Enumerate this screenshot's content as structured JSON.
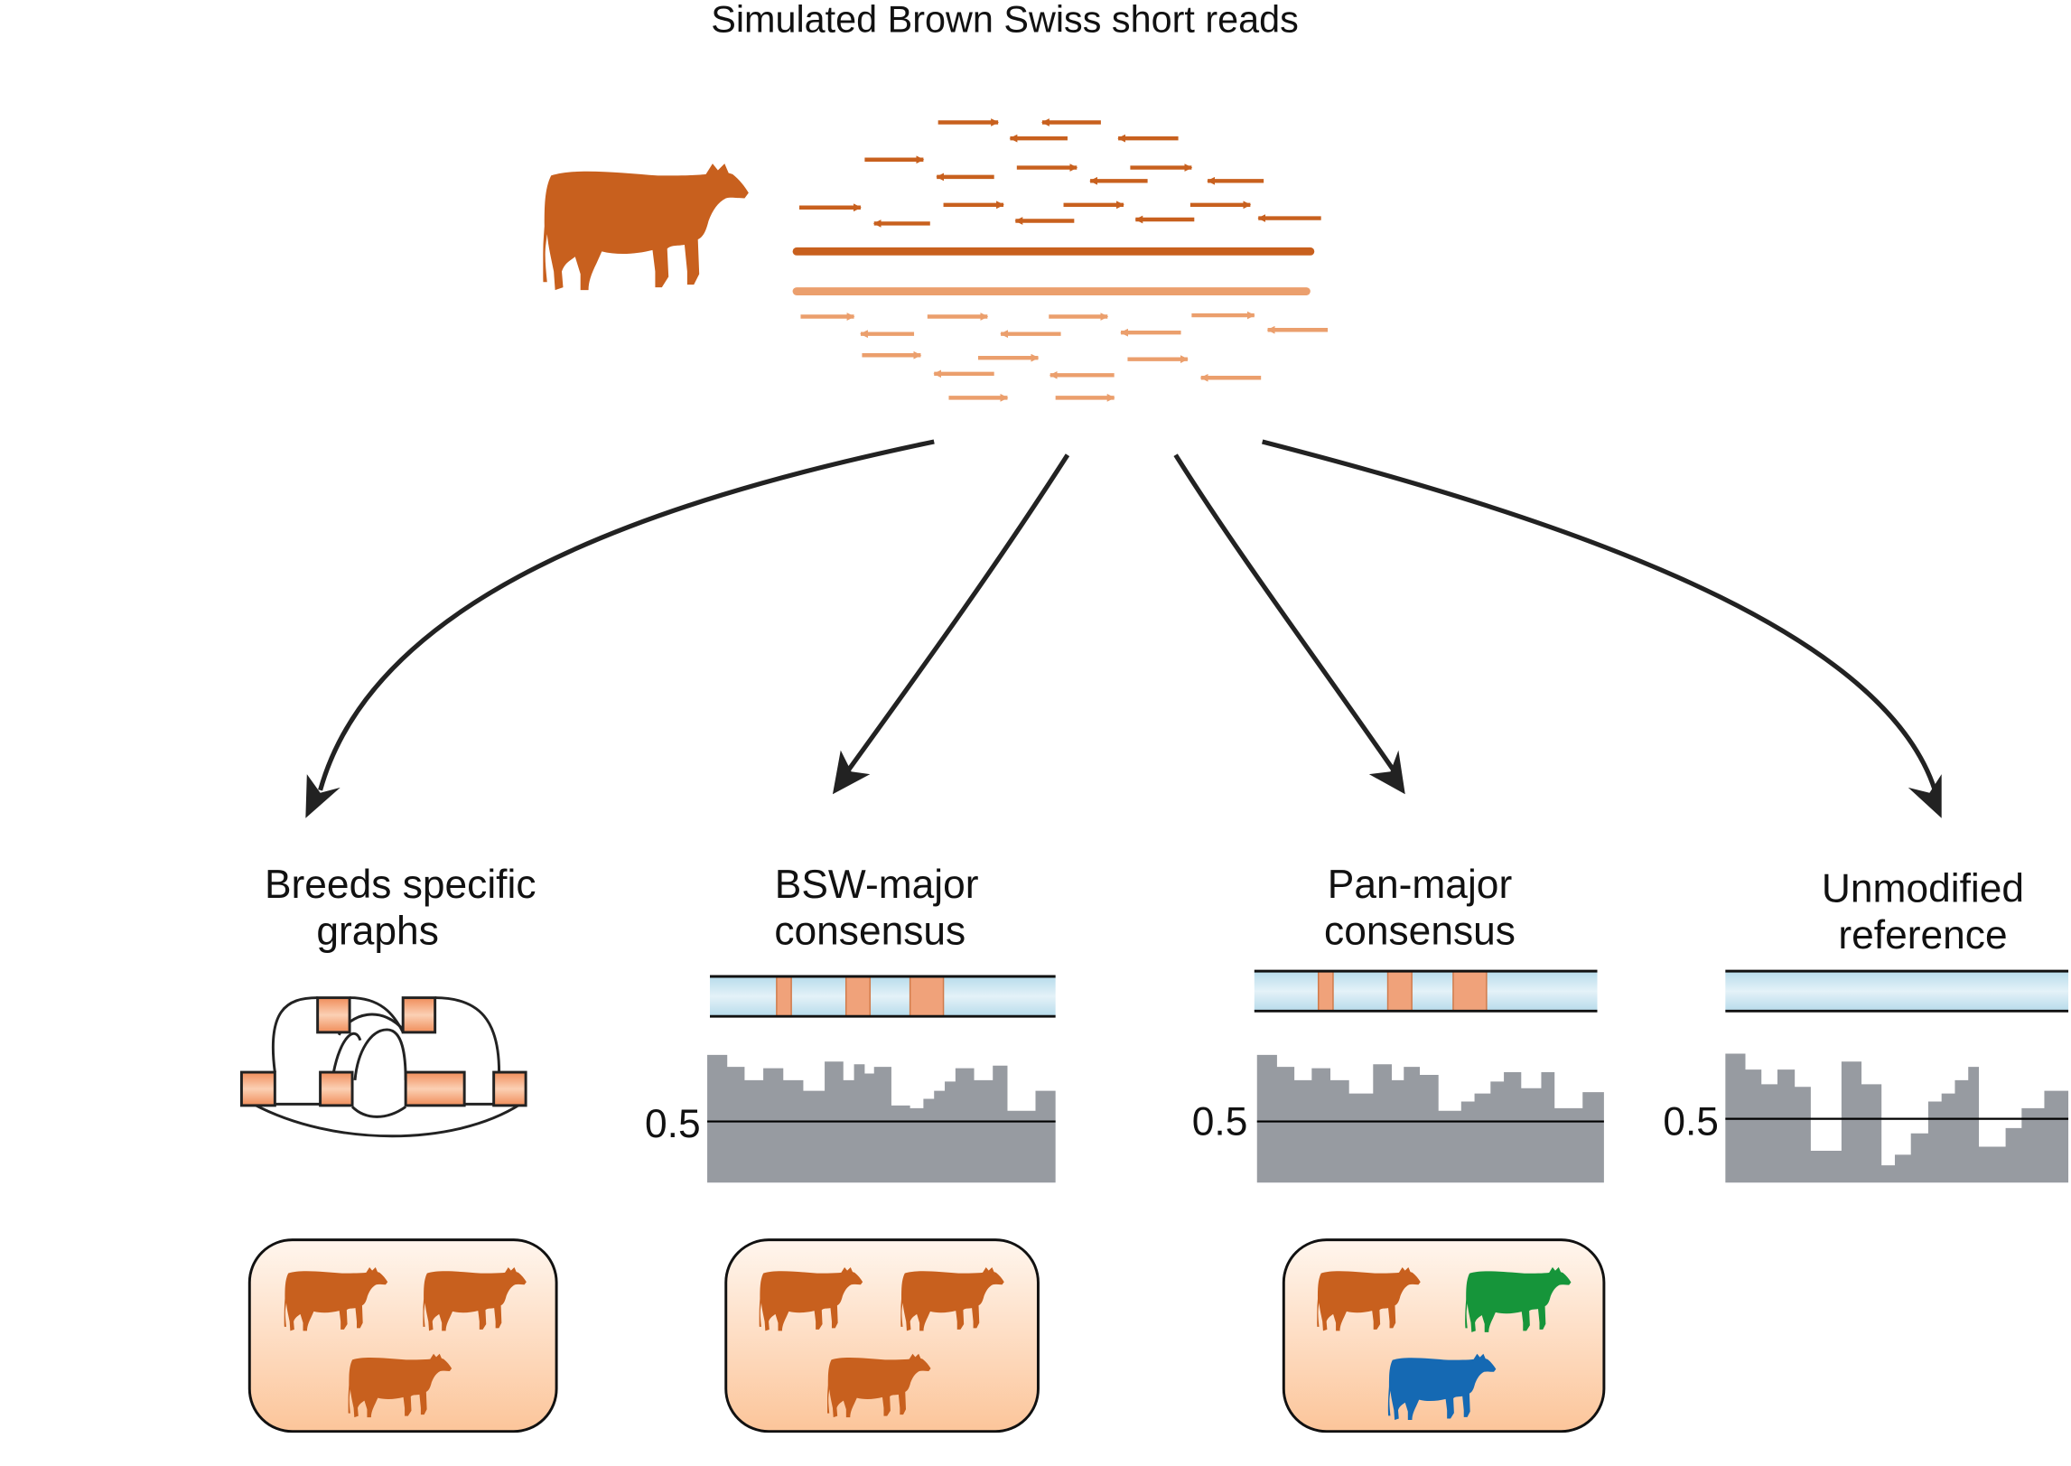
{
  "title": "Simulated Brown Swiss short reads",
  "colors": {
    "brown_swiss": "#c8601e",
    "read_light": "#eb9f6d",
    "variant_block": "#f0a27a",
    "reference_band": "#cbe6f1",
    "coverage": "#979ba1",
    "box_gradient_top": "#fff6ee",
    "box_gradient_bottom": "#fcc59a",
    "green_cow": "#16953a",
    "blue_cow": "#1569b3",
    "arrow": "#222222"
  },
  "panels": [
    {
      "id": "breed-specific-graphs",
      "label_lines": [
        "Breeds specific",
        "graphs"
      ],
      "reference_type": "graph",
      "cow_colors": [
        "brown",
        "brown",
        "brown"
      ]
    },
    {
      "id": "bsw-major-consensus",
      "label_lines": [
        "BSW-major",
        "consensus"
      ],
      "reference_type": "consensus",
      "variant_blocks": 3,
      "coverage_tick": "0.5",
      "cow_colors": [
        "brown",
        "brown",
        "brown"
      ]
    },
    {
      "id": "pan-major-consensus",
      "label_lines": [
        "Pan-major",
        "consensus"
      ],
      "reference_type": "consensus",
      "variant_blocks": 3,
      "coverage_tick": "0.5",
      "cow_colors": [
        "brown",
        "green",
        "blue"
      ]
    },
    {
      "id": "unmodified-reference",
      "label_lines": [
        "Unmodified",
        "reference"
      ],
      "reference_type": "linear",
      "variant_blocks": 0,
      "coverage_tick": "0.5",
      "cow_colors": []
    }
  ]
}
